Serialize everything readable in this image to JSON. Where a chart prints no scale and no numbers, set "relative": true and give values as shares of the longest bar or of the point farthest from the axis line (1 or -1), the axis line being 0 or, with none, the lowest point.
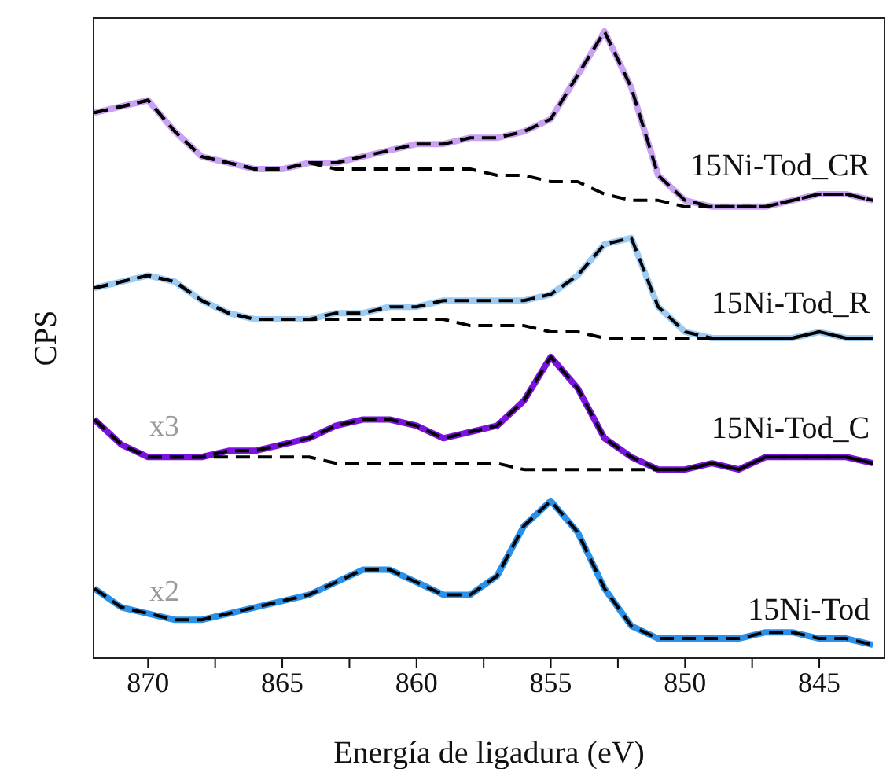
{
  "chart_data": {
    "type": "line",
    "relative": true,
    "xlabel": "Energía de ligadura (eV)",
    "ylabel": "CPS",
    "x": [
      872,
      871,
      870,
      869,
      868,
      867,
      866,
      865,
      864,
      863,
      862,
      861,
      860,
      859,
      858,
      857,
      856,
      855,
      854,
      853,
      852,
      851,
      850,
      849,
      848,
      847,
      846,
      845,
      844,
      843
    ],
    "xlim": [
      872,
      842.6
    ],
    "xticks": [
      870,
      {
        "value": 867.5,
        "label": null
      },
      865,
      {
        "value": 862.5,
        "label": null
      },
      860,
      {
        "value": 857.5,
        "label": null
      },
      855,
      {
        "value": 852.5,
        "label": null
      },
      850,
      {
        "value": 847.5,
        "label": null
      },
      845
    ],
    "series": [
      {
        "name": "15Ni-Tod_CR",
        "color": "#c9a2f2",
        "line_style": "solid",
        "values": [
          0.87,
          0.88,
          0.89,
          0.84,
          0.8,
          0.79,
          0.78,
          0.78,
          0.79,
          0.79,
          0.8,
          0.81,
          0.82,
          0.82,
          0.83,
          0.83,
          0.84,
          0.86,
          0.93,
          1,
          0.91,
          0.77,
          0.73,
          0.72,
          0.72,
          0.72,
          0.73,
          0.74,
          0.74,
          0.73
        ]
      },
      {
        "color": "#000000",
        "line_style": "dashed",
        "values": [
          0.87,
          0.88,
          0.89,
          0.84,
          0.8,
          0.79,
          0.78,
          0.78,
          0.79,
          0.79,
          0.8,
          0.81,
          0.82,
          0.82,
          0.83,
          0.83,
          0.84,
          0.86,
          0.93,
          1,
          0.91,
          0.77,
          0.73,
          0.72,
          0.72,
          0.72,
          0.73,
          0.74,
          0.74,
          0.73
        ]
      },
      {
        "color": "#000000",
        "line_style": "dashed",
        "values": [
          0.87,
          0.88,
          0.89,
          0.84,
          0.8,
          0.79,
          0.78,
          0.78,
          0.79,
          0.78,
          0.78,
          0.78,
          0.78,
          0.78,
          0.78,
          0.77,
          0.77,
          0.76,
          0.76,
          0.74,
          0.73,
          0.73,
          0.72,
          0.72,
          0.72,
          0.72,
          0.73,
          0.74,
          0.74,
          0.73
        ]
      },
      {
        "name": "15Ni-Tod_R",
        "color": "#9dcbf2",
        "line_style": "solid",
        "values": [
          0.59,
          0.6,
          0.61,
          0.6,
          0.57,
          0.55,
          0.54,
          0.54,
          0.54,
          0.55,
          0.55,
          0.56,
          0.56,
          0.57,
          0.57,
          0.57,
          0.57,
          0.58,
          0.61,
          0.66,
          0.67,
          0.56,
          0.52,
          0.51,
          0.51,
          0.51,
          0.51,
          0.52,
          0.51,
          0.51
        ]
      },
      {
        "color": "#000000",
        "line_style": "dashed",
        "values": [
          0.59,
          0.6,
          0.61,
          0.6,
          0.57,
          0.55,
          0.54,
          0.54,
          0.54,
          0.55,
          0.55,
          0.56,
          0.56,
          0.57,
          0.57,
          0.57,
          0.57,
          0.58,
          0.61,
          0.66,
          0.67,
          0.56,
          0.52,
          0.51,
          0.51,
          0.51,
          0.51,
          0.52,
          0.51,
          0.51
        ]
      },
      {
        "color": "#000000",
        "line_style": "dashed",
        "values": [
          0.59,
          0.6,
          0.61,
          0.6,
          0.57,
          0.55,
          0.54,
          0.54,
          0.54,
          0.54,
          0.54,
          0.54,
          0.54,
          0.54,
          0.53,
          0.53,
          0.53,
          0.52,
          0.52,
          0.51,
          0.51,
          0.51,
          0.51,
          0.51,
          0.51,
          0.51,
          0.51,
          0.52,
          0.51,
          0.51
        ]
      },
      {
        "name": "15Ni-Tod_C",
        "color": "#7b12e0",
        "line_style": "solid",
        "values": [
          0.38,
          0.34,
          0.32,
          0.32,
          0.32,
          0.33,
          0.33,
          0.34,
          0.35,
          0.37,
          0.38,
          0.38,
          0.37,
          0.35,
          0.36,
          0.37,
          0.41,
          0.48,
          0.43,
          0.35,
          0.32,
          0.3,
          0.3,
          0.31,
          0.3,
          0.32,
          0.32,
          0.32,
          0.32,
          0.31
        ]
      },
      {
        "color": "#000000",
        "line_style": "dashed",
        "values": [
          0.38,
          0.34,
          0.32,
          0.32,
          0.32,
          0.33,
          0.33,
          0.34,
          0.35,
          0.37,
          0.38,
          0.38,
          0.37,
          0.35,
          0.36,
          0.37,
          0.41,
          0.48,
          0.43,
          0.35,
          0.32,
          0.3,
          0.3,
          0.31,
          0.3,
          0.32,
          0.32,
          0.32,
          0.32,
          0.31
        ]
      },
      {
        "color": "#000000",
        "line_style": "dashed",
        "values": [
          0.38,
          0.34,
          0.32,
          0.32,
          0.32,
          0.32,
          0.32,
          0.32,
          0.32,
          0.31,
          0.31,
          0.31,
          0.31,
          0.31,
          0.31,
          0.31,
          0.3,
          0.3,
          0.3,
          0.3,
          0.3,
          0.3,
          0.3,
          0.31,
          0.3,
          0.32,
          0.32,
          0.32,
          0.32,
          0.31
        ]
      },
      {
        "name": "15Ni-Tod",
        "color": "#2b91e8",
        "line_style": "solid",
        "values": [
          0.11,
          0.08,
          0.07,
          0.06,
          0.06,
          0.07,
          0.08,
          0.09,
          0.1,
          0.12,
          0.14,
          0.14,
          0.12,
          0.1,
          0.1,
          0.13,
          0.21,
          0.25,
          0.2,
          0.11,
          0.05,
          0.03,
          0.03,
          0.03,
          0.03,
          0.04,
          0.04,
          0.03,
          0.03,
          0.02
        ]
      },
      {
        "color": "#000000",
        "line_style": "dashed",
        "values": [
          0.11,
          0.08,
          0.07,
          0.06,
          0.06,
          0.07,
          0.08,
          0.09,
          0.1,
          0.12,
          0.14,
          0.14,
          0.12,
          0.1,
          0.1,
          0.13,
          0.21,
          0.25,
          0.2,
          0.11,
          0.05,
          0.03,
          0.03,
          0.03,
          0.03,
          0.04,
          0.04,
          0.03,
          0.03,
          0.02
        ]
      }
    ],
    "annotations": [
      "x3",
      "x2"
    ]
  }
}
